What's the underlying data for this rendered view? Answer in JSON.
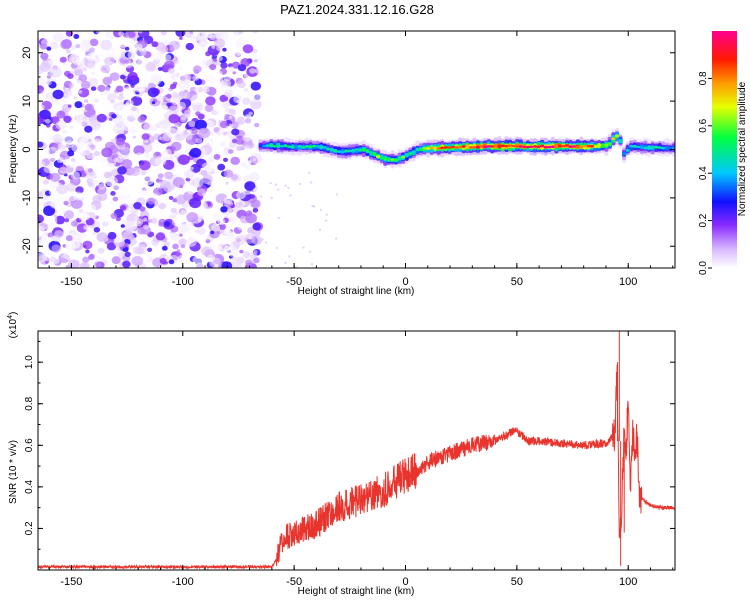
{
  "title": "PAZ1.2024.331.12.16.G28",
  "chart_data": [
    {
      "type": "heatmap",
      "xlabel": "Height of straight line (km)",
      "ylabel": "Frequency (Hz)",
      "xlim": [
        -165,
        121
      ],
      "ylim": [
        -24.5,
        24.5
      ],
      "x_ticks": [
        -150,
        -100,
        -50,
        0,
        50,
        100
      ],
      "y_ticks": [
        -20,
        -10,
        0,
        10,
        20
      ],
      "colorbar": {
        "label": "Normalized spectral amplitude",
        "range": [
          0.0,
          1.0
        ],
        "ticks": [
          "0.0",
          "0.2",
          "0.4",
          "0.6",
          "0.8"
        ],
        "colormap": [
          "#ffffff",
          "#c090ff",
          "#6a00ff",
          "#0000ff",
          "#00ffff",
          "#00ff00",
          "#ffff00",
          "#ff7f00",
          "#ff0000",
          "#ff00aa"
        ]
      },
      "noise_region_x": [
        -165,
        -66
      ],
      "ridge": {
        "x": [
          -66,
          -60,
          -50,
          -40,
          -30,
          -20,
          -10,
          -5,
          0,
          5,
          10,
          20,
          30,
          40,
          50,
          60,
          70,
          80,
          90,
          93,
          95,
          97,
          100,
          105,
          110,
          121
        ],
        "y": [
          0.8,
          0.8,
          0.5,
          0.6,
          -0.5,
          0.0,
          -2.0,
          -2.2,
          -1.2,
          0.0,
          0.3,
          0.4,
          0.6,
          0.7,
          0.7,
          0.6,
          0.7,
          0.6,
          0.8,
          2.5,
          3.0,
          -1.0,
          0.6,
          0.5,
          0.4,
          0.3
        ],
        "amplitude": [
          0.3,
          0.5,
          0.45,
          0.5,
          0.45,
          0.5,
          0.65,
          0.6,
          0.55,
          0.5,
          0.75,
          0.85,
          0.9,
          0.95,
          1.0,
          0.95,
          0.98,
          0.9,
          0.6,
          0.7,
          0.55,
          0.4,
          0.45,
          0.45,
          0.45,
          0.4
        ]
      }
    },
    {
      "type": "line",
      "xlabel": "Height of straight line (km)",
      "ylabel": "SNR (10 * v/v)",
      "y_multiplier_label": "(x10",
      "y_multiplier_exponent": "4",
      "xlim": [
        -165,
        121
      ],
      "ylim": [
        0.0,
        1.15
      ],
      "x_ticks": [
        -150,
        -100,
        -50,
        0,
        50,
        100
      ],
      "y_ticks": [
        0.2,
        0.4,
        0.6,
        0.8,
        1.0
      ],
      "color": "#e8342c",
      "series": [
        {
          "x": [
            -165,
            -60,
            -58,
            -55,
            -50,
            -45,
            -40,
            -35,
            -30,
            -25,
            -20,
            -15,
            -10,
            -5,
            0,
            5,
            10,
            20,
            30,
            40,
            47,
            50,
            55,
            60,
            70,
            80,
            90,
            94,
            95,
            96,
            97,
            98,
            99,
            100,
            101,
            102,
            103,
            104,
            105,
            110,
            115,
            121
          ],
          "y": [
            0.015,
            0.015,
            0.05,
            0.15,
            0.18,
            0.2,
            0.22,
            0.26,
            0.3,
            0.32,
            0.34,
            0.36,
            0.38,
            0.42,
            0.46,
            0.48,
            0.52,
            0.56,
            0.6,
            0.62,
            0.66,
            0.67,
            0.62,
            0.62,
            0.61,
            0.6,
            0.61,
            0.65,
            1.0,
            0.1,
            0.3,
            0.62,
            0.55,
            0.8,
            0.4,
            0.65,
            0.58,
            0.64,
            0.35,
            0.31,
            0.3,
            0.3
          ]
        }
      ]
    }
  ]
}
